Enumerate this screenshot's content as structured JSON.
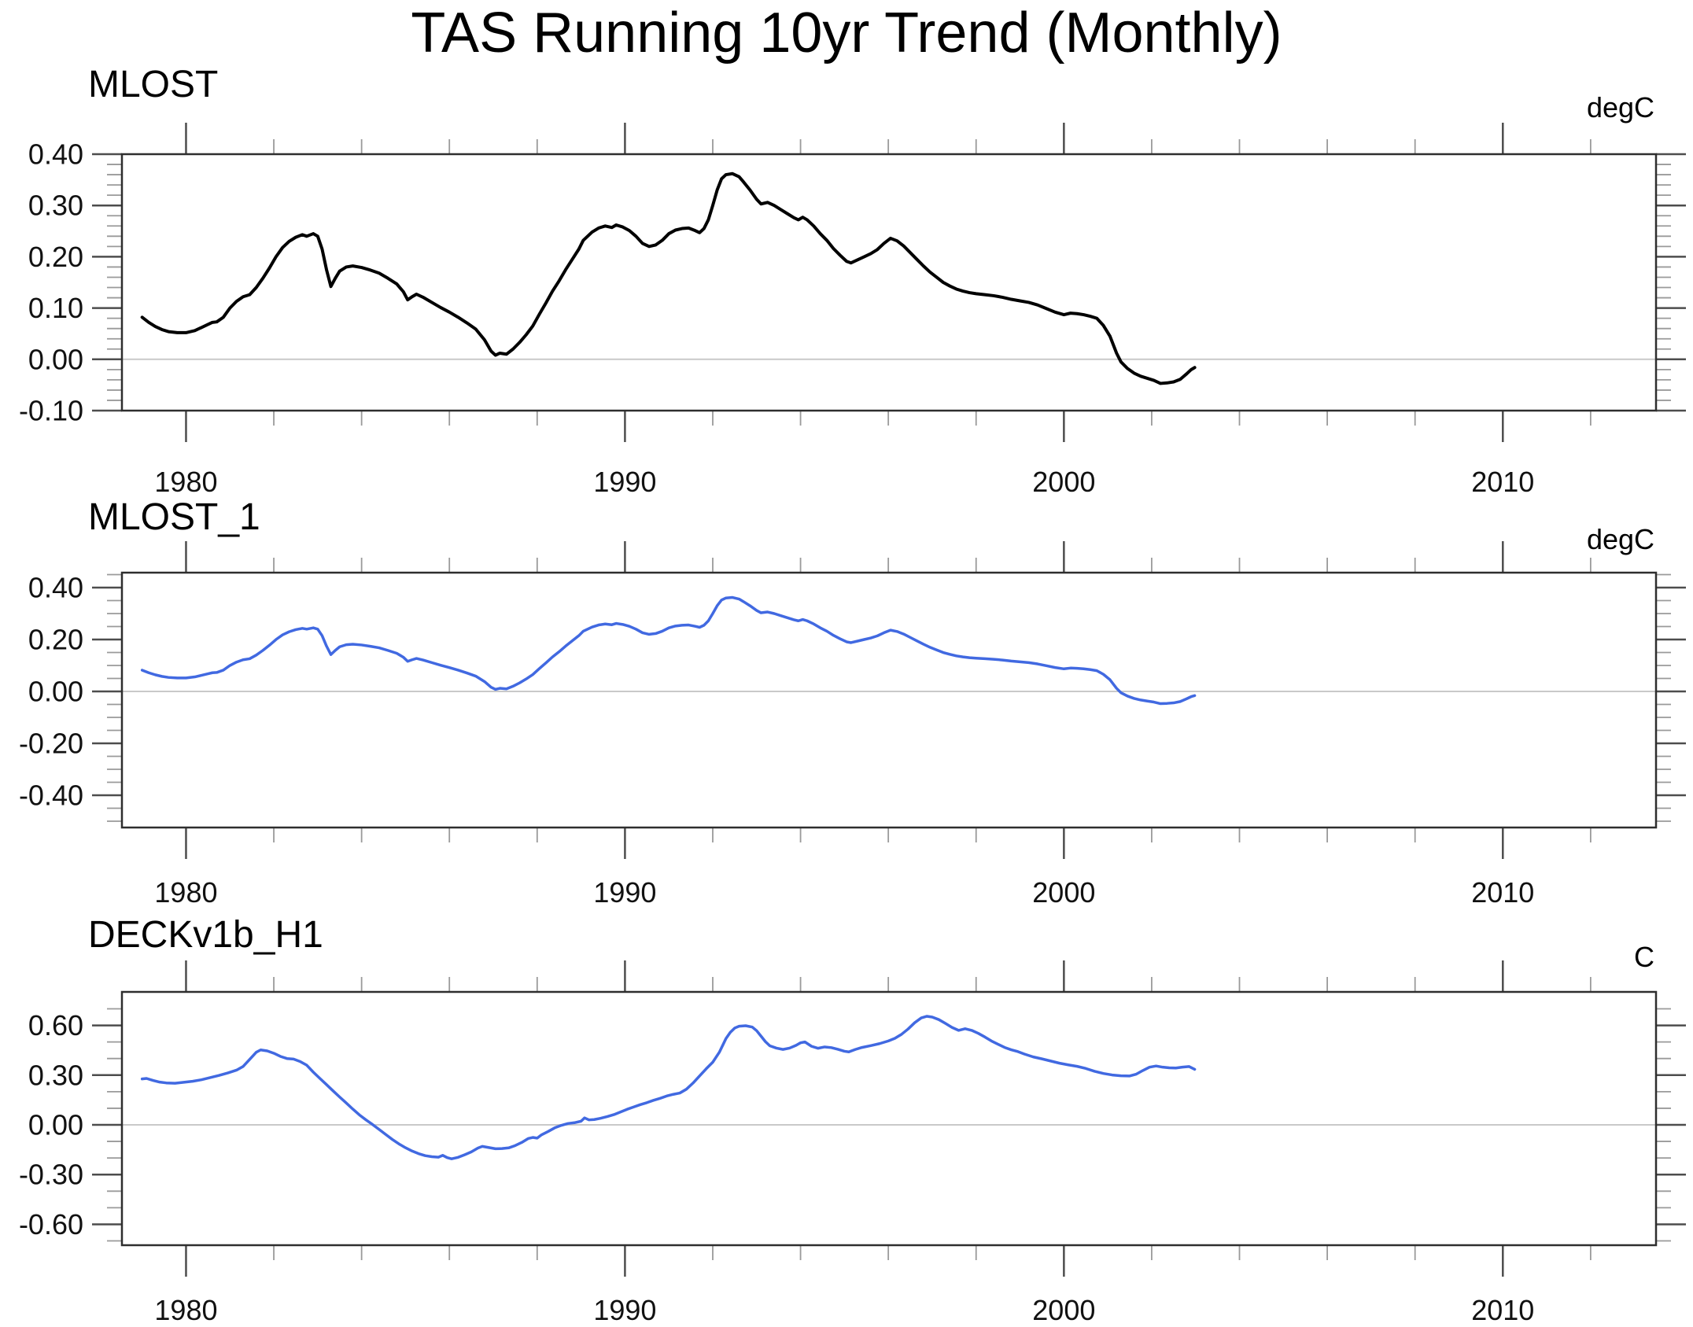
{
  "title": "TAS Running 10yr Trend (Monthly)",
  "style": {
    "background": "#ffffff",
    "text": "#111111",
    "frame": "#2e2e2e",
    "tick_major": "#4d4d4d",
    "tick_minor": "#9a9a9a",
    "zero_line": "#c9c9c9",
    "line_black": "#000000",
    "line_blue": "#4169e1"
  },
  "series_points": {
    "mlost": [
      [
        1979.0,
        0.082
      ],
      [
        1979.15,
        0.072
      ],
      [
        1979.3,
        0.064
      ],
      [
        1979.45,
        0.058
      ],
      [
        1979.6,
        0.054
      ],
      [
        1979.8,
        0.052
      ],
      [
        1980.0,
        0.052
      ],
      [
        1980.2,
        0.056
      ],
      [
        1980.35,
        0.062
      ],
      [
        1980.5,
        0.068
      ],
      [
        1980.6,
        0.072
      ],
      [
        1980.7,
        0.073
      ],
      [
        1980.85,
        0.082
      ],
      [
        1981.0,
        0.1
      ],
      [
        1981.15,
        0.113
      ],
      [
        1981.3,
        0.122
      ],
      [
        1981.45,
        0.126
      ],
      [
        1981.6,
        0.14
      ],
      [
        1981.75,
        0.158
      ],
      [
        1981.9,
        0.178
      ],
      [
        1982.05,
        0.2
      ],
      [
        1982.2,
        0.218
      ],
      [
        1982.35,
        0.23
      ],
      [
        1982.5,
        0.238
      ],
      [
        1982.65,
        0.243
      ],
      [
        1982.75,
        0.24
      ],
      [
        1982.9,
        0.245
      ],
      [
        1983.0,
        0.24
      ],
      [
        1983.1,
        0.215
      ],
      [
        1983.2,
        0.175
      ],
      [
        1983.3,
        0.142
      ],
      [
        1983.4,
        0.158
      ],
      [
        1983.5,
        0.172
      ],
      [
        1983.65,
        0.18
      ],
      [
        1983.8,
        0.182
      ],
      [
        1984.0,
        0.179
      ],
      [
        1984.2,
        0.174
      ],
      [
        1984.4,
        0.168
      ],
      [
        1984.6,
        0.158
      ],
      [
        1984.8,
        0.147
      ],
      [
        1984.95,
        0.132
      ],
      [
        1985.05,
        0.116
      ],
      [
        1985.15,
        0.122
      ],
      [
        1985.25,
        0.127
      ],
      [
        1985.4,
        0.121
      ],
      [
        1985.6,
        0.111
      ],
      [
        1985.8,
        0.101
      ],
      [
        1986.0,
        0.092
      ],
      [
        1986.2,
        0.082
      ],
      [
        1986.4,
        0.071
      ],
      [
        1986.6,
        0.059
      ],
      [
        1986.8,
        0.038
      ],
      [
        1986.95,
        0.016
      ],
      [
        1987.05,
        0.008
      ],
      [
        1987.15,
        0.012
      ],
      [
        1987.3,
        0.01
      ],
      [
        1987.45,
        0.02
      ],
      [
        1987.6,
        0.033
      ],
      [
        1987.75,
        0.048
      ],
      [
        1987.9,
        0.065
      ],
      [
        1988.05,
        0.088
      ],
      [
        1988.2,
        0.11
      ],
      [
        1988.35,
        0.133
      ],
      [
        1988.5,
        0.153
      ],
      [
        1988.65,
        0.175
      ],
      [
        1988.8,
        0.195
      ],
      [
        1988.95,
        0.215
      ],
      [
        1989.05,
        0.232
      ],
      [
        1989.15,
        0.24
      ],
      [
        1989.25,
        0.248
      ],
      [
        1989.4,
        0.256
      ],
      [
        1989.55,
        0.26
      ],
      [
        1989.7,
        0.257
      ],
      [
        1989.8,
        0.262
      ],
      [
        1989.95,
        0.258
      ],
      [
        1990.1,
        0.251
      ],
      [
        1990.25,
        0.24
      ],
      [
        1990.4,
        0.226
      ],
      [
        1990.55,
        0.22
      ],
      [
        1990.7,
        0.223
      ],
      [
        1990.85,
        0.232
      ],
      [
        1991.0,
        0.245
      ],
      [
        1991.15,
        0.252
      ],
      [
        1991.3,
        0.255
      ],
      [
        1991.45,
        0.256
      ],
      [
        1991.6,
        0.251
      ],
      [
        1991.7,
        0.247
      ],
      [
        1991.8,
        0.255
      ],
      [
        1991.9,
        0.272
      ],
      [
        1992.0,
        0.3
      ],
      [
        1992.1,
        0.33
      ],
      [
        1992.2,
        0.352
      ],
      [
        1992.3,
        0.36
      ],
      [
        1992.45,
        0.362
      ],
      [
        1992.6,
        0.356
      ],
      [
        1992.7,
        0.346
      ],
      [
        1992.85,
        0.33
      ],
      [
        1993.0,
        0.312
      ],
      [
        1993.1,
        0.303
      ],
      [
        1993.25,
        0.306
      ],
      [
        1993.4,
        0.3
      ],
      [
        1993.55,
        0.292
      ],
      [
        1993.7,
        0.284
      ],
      [
        1993.85,
        0.276
      ],
      [
        1993.95,
        0.272
      ],
      [
        1994.05,
        0.277
      ],
      [
        1994.15,
        0.272
      ],
      [
        1994.3,
        0.26
      ],
      [
        1994.45,
        0.245
      ],
      [
        1994.6,
        0.232
      ],
      [
        1994.75,
        0.216
      ],
      [
        1994.9,
        0.203
      ],
      [
        1995.05,
        0.191
      ],
      [
        1995.15,
        0.188
      ],
      [
        1995.3,
        0.194
      ],
      [
        1995.45,
        0.2
      ],
      [
        1995.6,
        0.206
      ],
      [
        1995.75,
        0.214
      ],
      [
        1995.9,
        0.226
      ],
      [
        1996.05,
        0.236
      ],
      [
        1996.2,
        0.231
      ],
      [
        1996.35,
        0.221
      ],
      [
        1996.5,
        0.208
      ],
      [
        1996.65,
        0.195
      ],
      [
        1996.8,
        0.182
      ],
      [
        1996.95,
        0.17
      ],
      [
        1997.1,
        0.16
      ],
      [
        1997.25,
        0.15
      ],
      [
        1997.4,
        0.143
      ],
      [
        1997.55,
        0.137
      ],
      [
        1997.7,
        0.133
      ],
      [
        1997.85,
        0.13
      ],
      [
        1998.0,
        0.128
      ],
      [
        1998.2,
        0.126
      ],
      [
        1998.4,
        0.124
      ],
      [
        1998.6,
        0.121
      ],
      [
        1998.8,
        0.117
      ],
      [
        1999.0,
        0.114
      ],
      [
        1999.2,
        0.111
      ],
      [
        1999.4,
        0.106
      ],
      [
        1999.6,
        0.099
      ],
      [
        1999.8,
        0.092
      ],
      [
        2000.0,
        0.087
      ],
      [
        2000.15,
        0.09
      ],
      [
        2000.3,
        0.089
      ],
      [
        2000.45,
        0.087
      ],
      [
        2000.6,
        0.084
      ],
      [
        2000.75,
        0.08
      ],
      [
        2000.9,
        0.066
      ],
      [
        2001.05,
        0.045
      ],
      [
        2001.2,
        0.012
      ],
      [
        2001.3,
        -0.005
      ],
      [
        2001.45,
        -0.018
      ],
      [
        2001.6,
        -0.027
      ],
      [
        2001.75,
        -0.033
      ],
      [
        2001.9,
        -0.037
      ],
      [
        2002.05,
        -0.041
      ],
      [
        2002.2,
        -0.047
      ],
      [
        2002.35,
        -0.046
      ],
      [
        2002.5,
        -0.044
      ],
      [
        2002.65,
        -0.039
      ],
      [
        2002.8,
        -0.028
      ],
      [
        2002.9,
        -0.02
      ],
      [
        2002.98,
        -0.016
      ]
    ],
    "deckv1b_h1": [
      [
        1979.0,
        0.277
      ],
      [
        1979.1,
        0.28
      ],
      [
        1979.25,
        0.268
      ],
      [
        1979.4,
        0.258
      ],
      [
        1979.55,
        0.253
      ],
      [
        1979.75,
        0.251
      ],
      [
        1979.95,
        0.257
      ],
      [
        1980.15,
        0.263
      ],
      [
        1980.35,
        0.272
      ],
      [
        1980.55,
        0.285
      ],
      [
        1980.75,
        0.298
      ],
      [
        1980.95,
        0.313
      ],
      [
        1981.15,
        0.33
      ],
      [
        1981.3,
        0.352
      ],
      [
        1981.45,
        0.395
      ],
      [
        1981.6,
        0.438
      ],
      [
        1981.7,
        0.452
      ],
      [
        1981.85,
        0.446
      ],
      [
        1982.0,
        0.432
      ],
      [
        1982.15,
        0.413
      ],
      [
        1982.3,
        0.4
      ],
      [
        1982.45,
        0.397
      ],
      [
        1982.6,
        0.382
      ],
      [
        1982.75,
        0.36
      ],
      [
        1982.9,
        0.318
      ],
      [
        1983.05,
        0.28
      ],
      [
        1983.2,
        0.243
      ],
      [
        1983.35,
        0.205
      ],
      [
        1983.5,
        0.168
      ],
      [
        1983.65,
        0.132
      ],
      [
        1983.8,
        0.095
      ],
      [
        1983.95,
        0.06
      ],
      [
        1984.1,
        0.03
      ],
      [
        1984.25,
        0.002
      ],
      [
        1984.4,
        -0.028
      ],
      [
        1984.55,
        -0.058
      ],
      [
        1984.7,
        -0.088
      ],
      [
        1984.85,
        -0.115
      ],
      [
        1985.0,
        -0.138
      ],
      [
        1985.15,
        -0.158
      ],
      [
        1985.3,
        -0.174
      ],
      [
        1985.45,
        -0.186
      ],
      [
        1985.6,
        -0.192
      ],
      [
        1985.75,
        -0.195
      ],
      [
        1985.85,
        -0.184
      ],
      [
        1985.95,
        -0.198
      ],
      [
        1986.05,
        -0.205
      ],
      [
        1986.2,
        -0.196
      ],
      [
        1986.35,
        -0.18
      ],
      [
        1986.5,
        -0.163
      ],
      [
        1986.65,
        -0.14
      ],
      [
        1986.75,
        -0.13
      ],
      [
        1986.9,
        -0.137
      ],
      [
        1987.05,
        -0.144
      ],
      [
        1987.2,
        -0.143
      ],
      [
        1987.35,
        -0.139
      ],
      [
        1987.5,
        -0.125
      ],
      [
        1987.65,
        -0.106
      ],
      [
        1987.8,
        -0.082
      ],
      [
        1987.9,
        -0.076
      ],
      [
        1988.0,
        -0.08
      ],
      [
        1988.1,
        -0.06
      ],
      [
        1988.25,
        -0.04
      ],
      [
        1988.4,
        -0.018
      ],
      [
        1988.55,
        -0.003
      ],
      [
        1988.7,
        0.008
      ],
      [
        1988.85,
        0.013
      ],
      [
        1989.0,
        0.022
      ],
      [
        1989.08,
        0.042
      ],
      [
        1989.18,
        0.03
      ],
      [
        1989.3,
        0.032
      ],
      [
        1989.45,
        0.04
      ],
      [
        1989.6,
        0.05
      ],
      [
        1989.75,
        0.062
      ],
      [
        1989.9,
        0.078
      ],
      [
        1990.05,
        0.094
      ],
      [
        1990.2,
        0.108
      ],
      [
        1990.35,
        0.122
      ],
      [
        1990.5,
        0.134
      ],
      [
        1990.65,
        0.148
      ],
      [
        1990.8,
        0.16
      ],
      [
        1990.95,
        0.174
      ],
      [
        1991.1,
        0.184
      ],
      [
        1991.25,
        0.192
      ],
      [
        1991.4,
        0.215
      ],
      [
        1991.55,
        0.252
      ],
      [
        1991.7,
        0.295
      ],
      [
        1991.85,
        0.338
      ],
      [
        1992.0,
        0.378
      ],
      [
        1992.15,
        0.438
      ],
      [
        1992.3,
        0.52
      ],
      [
        1992.4,
        0.558
      ],
      [
        1992.5,
        0.584
      ],
      [
        1992.6,
        0.595
      ],
      [
        1992.75,
        0.598
      ],
      [
        1992.9,
        0.59
      ],
      [
        1993.0,
        0.568
      ],
      [
        1993.1,
        0.535
      ],
      [
        1993.2,
        0.502
      ],
      [
        1993.3,
        0.477
      ],
      [
        1993.45,
        0.463
      ],
      [
        1993.6,
        0.455
      ],
      [
        1993.75,
        0.463
      ],
      [
        1993.9,
        0.48
      ],
      [
        1994.0,
        0.495
      ],
      [
        1994.1,
        0.5
      ],
      [
        1994.25,
        0.474
      ],
      [
        1994.4,
        0.462
      ],
      [
        1994.55,
        0.47
      ],
      [
        1994.7,
        0.466
      ],
      [
        1994.85,
        0.456
      ],
      [
        1995.0,
        0.444
      ],
      [
        1995.1,
        0.44
      ],
      [
        1995.25,
        0.455
      ],
      [
        1995.4,
        0.467
      ],
      [
        1995.6,
        0.478
      ],
      [
        1995.8,
        0.49
      ],
      [
        1996.0,
        0.506
      ],
      [
        1996.15,
        0.522
      ],
      [
        1996.3,
        0.546
      ],
      [
        1996.45,
        0.578
      ],
      [
        1996.6,
        0.616
      ],
      [
        1996.75,
        0.645
      ],
      [
        1996.88,
        0.655
      ],
      [
        1997.0,
        0.65
      ],
      [
        1997.15,
        0.635
      ],
      [
        1997.3,
        0.612
      ],
      [
        1997.45,
        0.588
      ],
      [
        1997.6,
        0.57
      ],
      [
        1997.75,
        0.58
      ],
      [
        1997.9,
        0.57
      ],
      [
        1998.05,
        0.552
      ],
      [
        1998.2,
        0.53
      ],
      [
        1998.35,
        0.506
      ],
      [
        1998.5,
        0.486
      ],
      [
        1998.65,
        0.467
      ],
      [
        1998.8,
        0.453
      ],
      [
        1998.95,
        0.442
      ],
      [
        1999.1,
        0.427
      ],
      [
        1999.3,
        0.41
      ],
      [
        1999.5,
        0.398
      ],
      [
        1999.7,
        0.385
      ],
      [
        1999.9,
        0.372
      ],
      [
        2000.1,
        0.362
      ],
      [
        2000.3,
        0.353
      ],
      [
        2000.5,
        0.34
      ],
      [
        2000.7,
        0.323
      ],
      [
        2000.9,
        0.31
      ],
      [
        2001.1,
        0.301
      ],
      [
        2001.3,
        0.296
      ],
      [
        2001.5,
        0.295
      ],
      [
        2001.65,
        0.306
      ],
      [
        2001.8,
        0.328
      ],
      [
        2001.95,
        0.348
      ],
      [
        2002.1,
        0.355
      ],
      [
        2002.25,
        0.348
      ],
      [
        2002.4,
        0.344
      ],
      [
        2002.55,
        0.343
      ],
      [
        2002.7,
        0.348
      ],
      [
        2002.85,
        0.352
      ],
      [
        2002.98,
        0.335
      ]
    ]
  },
  "chart_data": [
    {
      "type": "line",
      "title": "MLOST",
      "ylabel": "degC",
      "xlabel": "",
      "x_range": [
        1978.54,
        2013.49
      ],
      "xticks": {
        "major": [
          1980,
          1990,
          2000,
          2010
        ],
        "labels": [
          "1980",
          "1990",
          "2000",
          "2010"
        ],
        "minor": [
          1982,
          1984,
          1986,
          1988,
          1992,
          1994,
          1996,
          1998,
          2002,
          2004,
          2006,
          2008,
          2012
        ]
      },
      "ylim": [
        -0.1,
        0.4
      ],
      "yticks": {
        "major": [
          0.4,
          0.3,
          0.2,
          0.1,
          0.0,
          -0.1
        ],
        "labels": [
          "0.40",
          "0.30",
          "0.20",
          "0.10",
          "0.00",
          "-0.10"
        ],
        "minor_step": 0.02
      },
      "grid": "zero-line-only",
      "legend": "none",
      "series": [
        {
          "name": "MLOST",
          "color_key": "line_black",
          "points_ref": "mlost",
          "line_width": 4
        }
      ]
    },
    {
      "type": "line",
      "title": "MLOST_1",
      "ylabel": "degC",
      "xlabel": "",
      "x_range": [
        1978.54,
        2013.49
      ],
      "xticks": {
        "major": [
          1980,
          1990,
          2000,
          2010
        ],
        "labels": [
          "1980",
          "1990",
          "2000",
          "2010"
        ],
        "minor": [
          1982,
          1984,
          1986,
          1988,
          1992,
          1994,
          1996,
          1998,
          2002,
          2004,
          2006,
          2008,
          2012
        ]
      },
      "ylim": [
        -0.5242,
        0.4576
      ],
      "yticks": {
        "major": [
          0.4,
          0.2,
          0.0,
          -0.2,
          -0.4
        ],
        "labels": [
          "0.40",
          "0.20",
          "0.00",
          "-0.20",
          "-0.40"
        ],
        "minor_step": 0.05
      },
      "grid": "zero-line-only",
      "legend": "none",
      "series": [
        {
          "name": "MLOST_1",
          "color_key": "line_blue",
          "points_ref": "mlost",
          "line_width": 3.5
        }
      ]
    },
    {
      "type": "line",
      "title": "DECKv1b_H1",
      "ylabel": "C",
      "xlabel": "",
      "x_range": [
        1978.54,
        2013.49
      ],
      "xticks": {
        "major": [
          1980,
          1990,
          2000,
          2010
        ],
        "labels": [
          "1980",
          "1990",
          "2000",
          "2010"
        ],
        "minor": [
          1982,
          1984,
          1986,
          1988,
          1992,
          1994,
          1996,
          1998,
          2002,
          2004,
          2006,
          2008,
          2012
        ]
      },
      "ylim": [
        -0.726,
        0.802
      ],
      "yticks": {
        "major": [
          0.6,
          0.3,
          0.0,
          -0.3,
          -0.6
        ],
        "labels": [
          "0.60",
          "0.30",
          "0.00",
          "-0.30",
          "-0.60"
        ],
        "minor_step": 0.1
      },
      "grid": "zero-line-only",
      "legend": "none",
      "series": [
        {
          "name": "DECKv1b_H1",
          "color_key": "line_blue",
          "points_ref": "deckv1b_h1",
          "line_width": 3.5
        }
      ]
    }
  ]
}
